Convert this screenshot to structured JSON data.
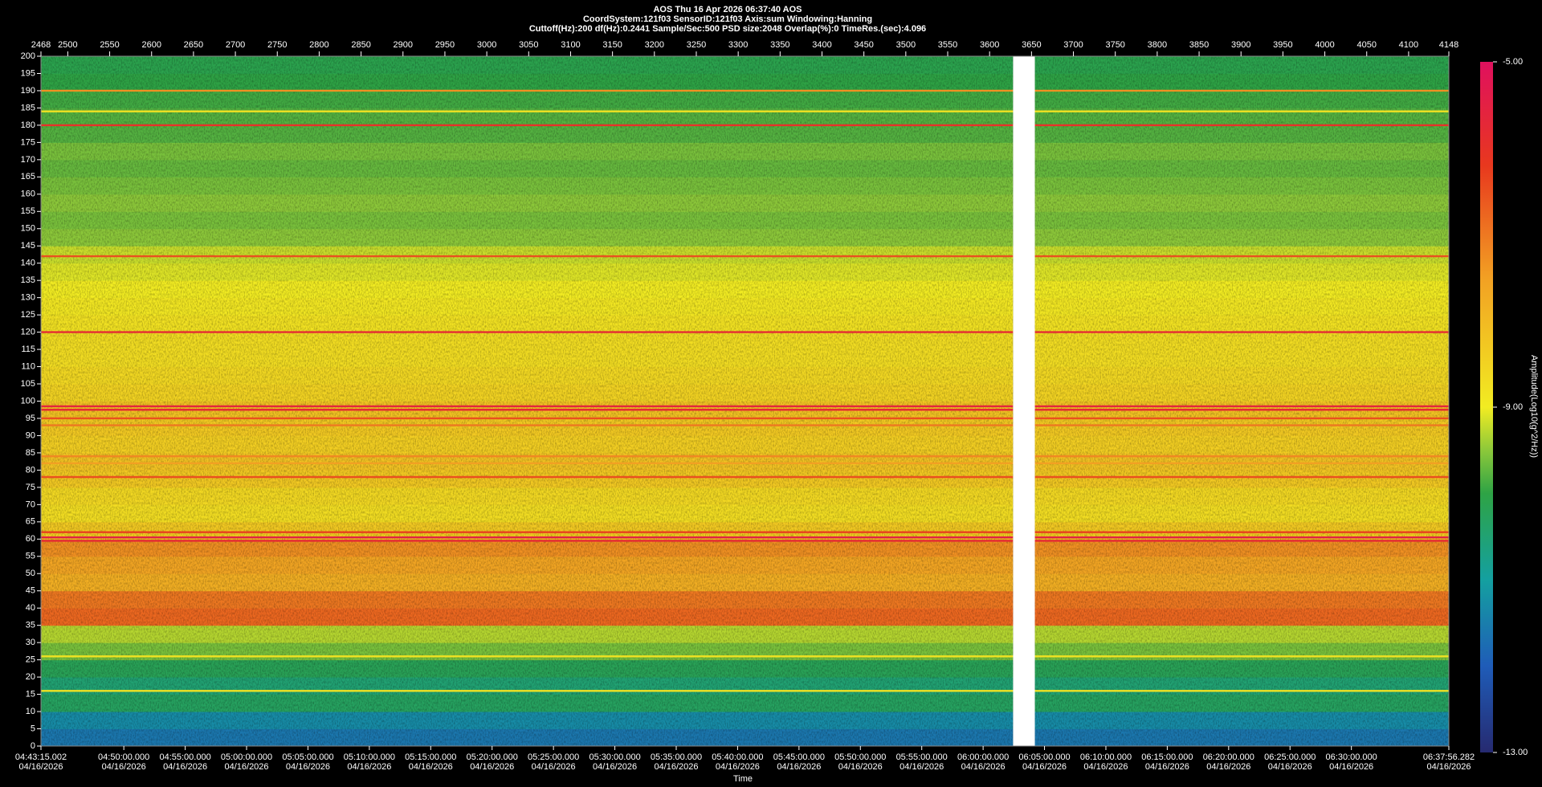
{
  "chart_data": {
    "type": "spectrogram",
    "title": "AOS  Thu 16 Apr 2026 06:37:40  AOS",
    "subtitle": "CoordSystem:121f03   SensorID:121f03   Axis:sum   Windowing:Hanning",
    "settings_line": "Cuttoff(Hz):200     df(Hz):0.2441     Sample/Sec:500     PSD size:2048     Overlap(%):0     TimeRes.(sec):4.096",
    "xlabel": "Time",
    "xlim": [
      2468,
      4148
    ],
    "xticks": [
      2468,
      2500,
      2550,
      2600,
      2650,
      2700,
      2750,
      2800,
      2850,
      2900,
      2950,
      3000,
      3050,
      3100,
      3150,
      3200,
      3250,
      3300,
      3350,
      3400,
      3450,
      3500,
      3550,
      3600,
      3650,
      3700,
      3750,
      3800,
      3850,
      3900,
      3950,
      4000,
      4050,
      4100,
      4148
    ],
    "gap": [
      3628,
      3654
    ],
    "tlim": [
      {
        "time": "04:43:15.002",
        "date": "04/16/2026"
      },
      {
        "time": "06:37:56.282",
        "date": "04/16/2026"
      }
    ],
    "tticks": [
      {
        "time": "04:50:00.000",
        "date": "04/16/2026"
      },
      {
        "time": "04:55:00.000",
        "date": "04/16/2026"
      },
      {
        "time": "05:00:00.000",
        "date": "04/16/2026"
      },
      {
        "time": "05:05:00.000",
        "date": "04/16/2026"
      },
      {
        "time": "05:10:00.000",
        "date": "04/16/2026"
      },
      {
        "time": "05:15:00.000",
        "date": "04/16/2026"
      },
      {
        "time": "05:20:00.000",
        "date": "04/16/2026"
      },
      {
        "time": "05:25:00.000",
        "date": "04/16/2026"
      },
      {
        "time": "05:30:00.000",
        "date": "04/16/2026"
      },
      {
        "time": "05:35:00.000",
        "date": "04/16/2026"
      },
      {
        "time": "05:40:00.000",
        "date": "04/16/2026"
      },
      {
        "time": "05:45:00.000",
        "date": "04/16/2026"
      },
      {
        "time": "05:50:00.000",
        "date": "04/16/2026"
      },
      {
        "time": "05:55:00.000",
        "date": "04/16/2026"
      },
      {
        "time": "06:00:00.000",
        "date": "04/16/2026"
      },
      {
        "time": "06:05:00.000",
        "date": "04/16/2026"
      },
      {
        "time": "06:10:00.000",
        "date": "04/16/2026"
      },
      {
        "time": "06:15:00.000",
        "date": "04/16/2026"
      },
      {
        "time": "06:20:00.000",
        "date": "04/16/2026"
      },
      {
        "time": "06:25:00.000",
        "date": "04/16/2026"
      },
      {
        "time": "06:30:00.000",
        "date": "04/16/2026"
      }
    ],
    "ylim": [
      0,
      200
    ],
    "yticks": [
      0,
      5,
      10,
      15,
      20,
      25,
      30,
      35,
      40,
      45,
      50,
      55,
      60,
      65,
      70,
      75,
      80,
      85,
      90,
      95,
      100,
      105,
      110,
      115,
      120,
      125,
      130,
      135,
      140,
      145,
      150,
      155,
      160,
      165,
      170,
      175,
      180,
      185,
      190,
      195,
      200
    ],
    "band_edges": [
      0,
      5,
      10,
      15,
      20,
      25,
      30,
      35,
      40,
      45,
      50,
      55,
      60,
      65,
      70,
      75,
      80,
      85,
      90,
      95,
      100,
      105,
      110,
      115,
      120,
      125,
      130,
      135,
      140,
      145,
      150,
      155,
      160,
      165,
      170,
      175,
      180,
      185,
      190,
      195,
      200
    ],
    "band_values": [
      -11.6,
      -11.3,
      -10.3,
      -10.5,
      -10.2,
      -9.6,
      -9.3,
      -6.8,
      -7.0,
      -7.8,
      -7.6,
      -7.3,
      -8.3,
      -8.7,
      -8.6,
      -8.3,
      -8.2,
      -8.4,
      -8.3,
      -8.2,
      -8.5,
      -8.6,
      -8.7,
      -8.7,
      -8.8,
      -8.9,
      -9.0,
      -9.1,
      -9.2,
      -9.5,
      -9.6,
      -9.5,
      -9.6,
      -9.7,
      -9.6,
      -9.8,
      -9.8,
      -9.9,
      -10.0,
      -10.1
    ],
    "lines": {
      "freqs": [
        190,
        184,
        180,
        142,
        120,
        98.5,
        97.5,
        95,
        93,
        84,
        82,
        78,
        62,
        60.5,
        59.5,
        26,
        16
      ],
      "values": [
        -7.3,
        -8.8,
        -6.0,
        -6.5,
        -5.8,
        -5.6,
        -5.8,
        -6.5,
        -7.0,
        -7.2,
        -7.5,
        -6.5,
        -6.3,
        -5.5,
        -5.8,
        -8.8,
        -8.8
      ]
    },
    "colorbar_label": "Amplitude(Log10(g^2/Hz))",
    "clim": [
      -13,
      -5
    ],
    "cticks": [
      {
        "value": -5,
        "label": "-5.00"
      },
      {
        "value": -9,
        "label": "-9.00"
      },
      {
        "value": -13,
        "label": "-13.00"
      }
    ],
    "colormap": [
      {
        "value": -13,
        "color": "#262a70"
      },
      {
        "value": -12,
        "color": "#1f5cb8"
      },
      {
        "value": -11,
        "color": "#14a0a0"
      },
      {
        "value": -10,
        "color": "#2ea345"
      },
      {
        "value": -9.5,
        "color": "#8cc83a"
      },
      {
        "value": -9,
        "color": "#f2ec22"
      },
      {
        "value": -7.5,
        "color": "#f2a023"
      },
      {
        "value": -6.2,
        "color": "#e8381e"
      },
      {
        "value": -5,
        "color": "#e0105e"
      }
    ]
  }
}
